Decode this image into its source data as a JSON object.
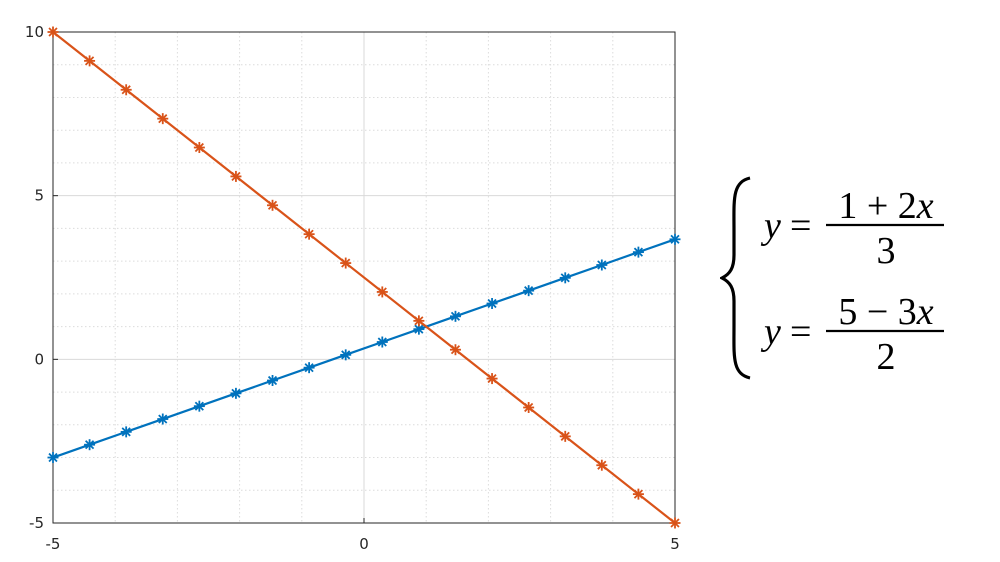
{
  "chart_data": {
    "type": "line",
    "xlim": [
      -5,
      5
    ],
    "ylim": [
      -5,
      10
    ],
    "x_ticks": [
      -5,
      0,
      5
    ],
    "y_ticks": [
      -5,
      0,
      5,
      10
    ],
    "x_tick_labels": [
      "-5",
      "0",
      "5"
    ],
    "y_tick_labels": [
      "-5",
      "0",
      "5",
      "10"
    ],
    "grid": true,
    "minor_grid": true,
    "x": [
      -5,
      -4.4118,
      -3.8235,
      -3.2353,
      -2.6471,
      -2.0588,
      -1.4706,
      -0.8824,
      -0.2941,
      0.2941,
      0.8824,
      1.4706,
      2.0588,
      2.6471,
      3.2353,
      3.8235,
      4.4118,
      5
    ],
    "series": [
      {
        "color": "#0072BD",
        "marker": "asterisk",
        "values": [
          -3,
          -2.608,
          -2.216,
          -1.824,
          -1.431,
          -1.039,
          -0.647,
          -0.255,
          0.137,
          0.529,
          0.922,
          1.314,
          1.706,
          2.098,
          2.49,
          2.882,
          3.275,
          3.667
        ]
      },
      {
        "color": "#D95319",
        "marker": "asterisk",
        "values": [
          10,
          9.118,
          8.235,
          7.353,
          6.471,
          5.588,
          4.706,
          3.824,
          2.941,
          2.059,
          1.176,
          0.294,
          -0.588,
          -1.471,
          -2.353,
          -3.235,
          -4.118,
          -5
        ]
      }
    ]
  },
  "equations": {
    "eq1": {
      "lhs": "y",
      "equals": "=",
      "numerator": "1 + 2x",
      "denominator": "3"
    },
    "eq2": {
      "lhs": "y",
      "equals": "=",
      "numerator": "5 − 3x",
      "denominator": "2"
    }
  }
}
